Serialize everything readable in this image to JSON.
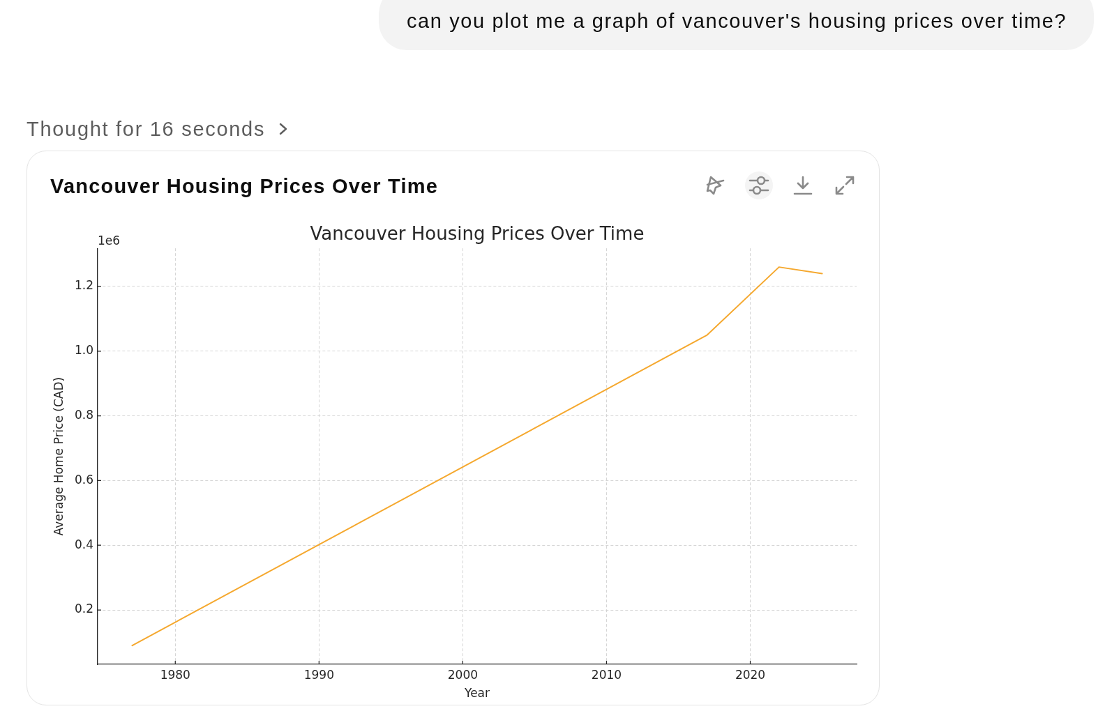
{
  "chart_data": {
    "type": "line",
    "title": "Vancouver Housing Prices Over Time",
    "xlabel": "Year",
    "ylabel": "Average Home Price (CAD)",
    "annotations": [
      "can you plot me a graph of vancouver's housing prices over time?",
      "Thought for 16 seconds",
      "Vancouver Housing Prices Over Time",
      "1e6"
    ],
    "x": [
      1977,
      2017,
      2022,
      2025
    ],
    "values": [
      0.09,
      1.05,
      1.26,
      1.24
    ],
    "color": "#f5a82e",
    "xlim": [
      1974.6,
      2027.4
    ],
    "xticks": [
      1980,
      1990,
      2000,
      2010,
      2020
    ],
    "ylim": [
      0.032,
      1.318
    ],
    "yticks": [
      0.2,
      0.4,
      0.6,
      0.8,
      {
        "value": 1.0,
        "label": "1.0"
      },
      1.2
    ],
    "grid": true
  }
}
